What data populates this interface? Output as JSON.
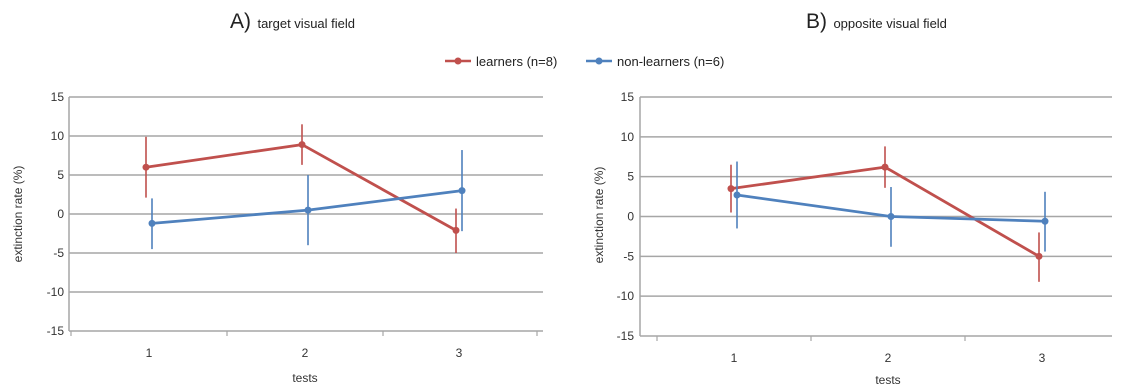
{
  "legend": [
    {
      "label": "learners (n=8)",
      "color": "#c0504d"
    },
    {
      "label": "non-learners (n=6)",
      "color": "#4f81bd"
    }
  ],
  "chart_data": [
    {
      "type": "line",
      "title_letter": "A)",
      "title": "target visual field",
      "xlabel": "tests",
      "ylabel": "extinction rate (%)",
      "categories": [
        "1",
        "2",
        "3"
      ],
      "ylim": [
        -15,
        15
      ],
      "yticks": [
        15,
        10,
        5,
        0,
        -5,
        -10,
        -15
      ],
      "grid": true,
      "series": [
        {
          "name": "learners (n=8)",
          "color": "#c0504d",
          "values": [
            6.0,
            8.9,
            -2.1
          ],
          "err_low": [
            2.1,
            6.3,
            -5.0
          ],
          "err_high": [
            9.9,
            11.5,
            0.7
          ]
        },
        {
          "name": "non-learners (n=6)",
          "color": "#4f81bd",
          "values": [
            -1.2,
            0.5,
            3.0
          ],
          "err_low": [
            -4.5,
            -4.0,
            -2.2
          ],
          "err_high": [
            2.0,
            5.0,
            8.2
          ]
        }
      ]
    },
    {
      "type": "line",
      "title_letter": "B)",
      "title": "opposite visual field",
      "xlabel": "tests",
      "ylabel": "extinction rate (%)",
      "categories": [
        "1",
        "2",
        "3"
      ],
      "ylim": [
        -15,
        15
      ],
      "yticks": [
        15,
        10,
        5,
        0,
        -5,
        -10,
        -15
      ],
      "grid": true,
      "series": [
        {
          "name": "learners (n=8)",
          "color": "#c0504d",
          "values": [
            3.5,
            6.2,
            -5.0
          ],
          "err_low": [
            0.5,
            3.6,
            -8.2
          ],
          "err_high": [
            6.5,
            8.8,
            -2.0
          ]
        },
        {
          "name": "non-learners (n=6)",
          "color": "#4f81bd",
          "values": [
            2.7,
            0.0,
            -0.6
          ],
          "err_low": [
            -1.5,
            -3.8,
            -4.4
          ],
          "err_high": [
            6.9,
            3.7,
            3.1
          ]
        }
      ]
    }
  ]
}
